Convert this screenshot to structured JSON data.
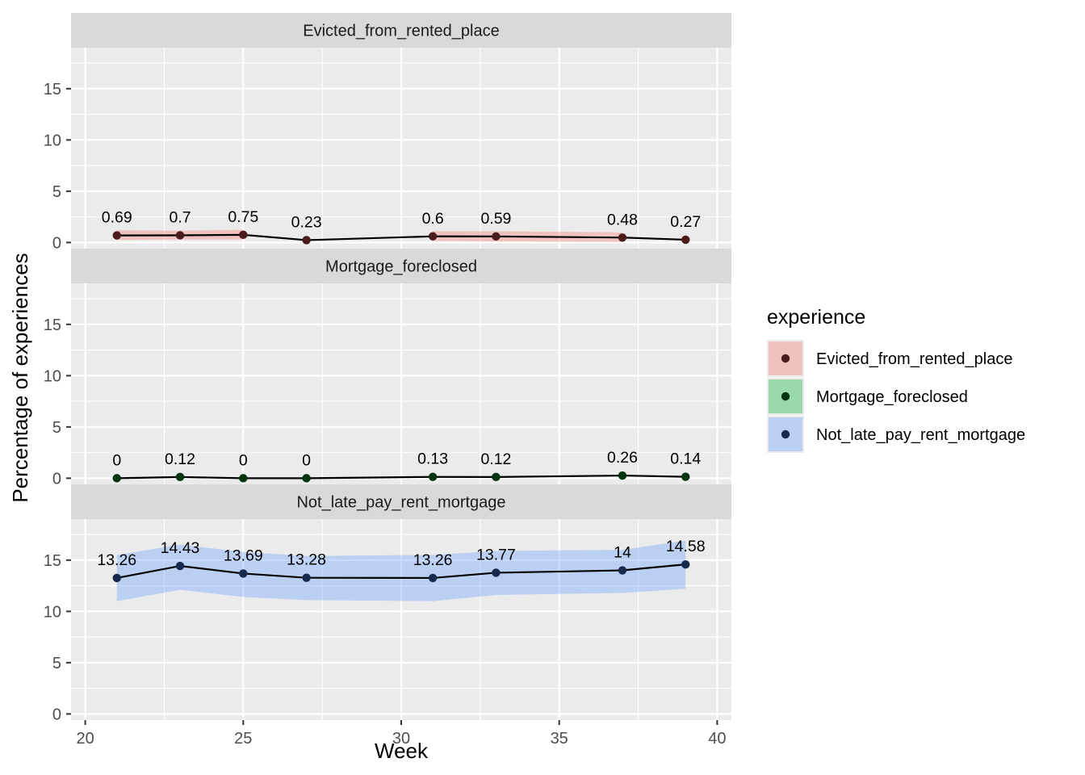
{
  "chart_data": {
    "type": "line",
    "x": [
      21,
      23,
      25,
      27,
      31,
      33,
      37,
      39
    ],
    "xlabel": "Week",
    "ylabel": "Percentage of experiences",
    "xlim": [
      19.55,
      40.45
    ],
    "ylim": [
      -0.6,
      19.0
    ],
    "x_ticks": [
      20,
      25,
      30,
      35,
      40
    ],
    "y_ticks": [
      0,
      5,
      10,
      15
    ],
    "grid": true,
    "legend": {
      "title": "experience",
      "position": "right",
      "entries": [
        "Evicted_from_rented_place",
        "Mortgage_foreclosed",
        "Not_late_pay_rent_mortgage"
      ]
    },
    "series": [
      {
        "name": "Evicted_from_rented_place",
        "values": [
          0.69,
          0.7,
          0.75,
          0.23,
          0.6,
          0.59,
          0.48,
          0.27
        ],
        "labels": [
          "0.69",
          "0.7",
          "0.75",
          "0.23",
          "0.6",
          "0.59",
          "0.48",
          "0.27"
        ],
        "ribbons": [
          {
            "x": [
              21,
              23,
              25
            ],
            "lower": [
              0.25,
              0.3,
              0.3
            ],
            "upper": [
              1.2,
              1.15,
              1.25
            ]
          },
          {
            "x": [
              31,
              33,
              37
            ],
            "lower": [
              0.15,
              0.1,
              0.05
            ],
            "upper": [
              1.1,
              1.1,
              1.0
            ]
          }
        ]
      },
      {
        "name": "Mortgage_foreclosed",
        "values": [
          0,
          0.12,
          0,
          0,
          0.13,
          0.12,
          0.26,
          0.14
        ],
        "labels": [
          "0",
          "0.12",
          "0",
          "0",
          "0.13",
          "0.12",
          "0.26",
          "0.14"
        ],
        "ribbons": []
      },
      {
        "name": "Not_late_pay_rent_mortgage",
        "values": [
          13.26,
          14.43,
          13.69,
          13.28,
          13.26,
          13.77,
          14.0,
          14.58
        ],
        "labels": [
          "13.26",
          "14.43",
          "13.69",
          "13.28",
          "13.26",
          "13.77",
          "14",
          "14.58"
        ],
        "ribbons": [
          {
            "x": [
              21,
              23,
              25,
              27,
              31,
              33,
              37,
              39
            ],
            "lower": [
              11.0,
              12.1,
              11.4,
              11.1,
              11.0,
              11.6,
              11.8,
              12.2
            ],
            "upper": [
              15.5,
              16.5,
              15.8,
              15.4,
              15.5,
              15.9,
              16.0,
              16.9
            ]
          }
        ]
      }
    ]
  },
  "colors": {
    "Evicted_from_rented_place": {
      "fill": "#f8766d",
      "point": "#4a1c1b"
    },
    "Mortgage_foreclosed": {
      "fill": "#00ba38",
      "point": "#003510"
    },
    "Not_late_pay_rent_mortgage": {
      "fill": "#619cff",
      "point": "#172a4d"
    },
    "panel_bg": "#ebebeb",
    "strip_bg": "#d9d9d9",
    "grid": "#ffffff"
  }
}
